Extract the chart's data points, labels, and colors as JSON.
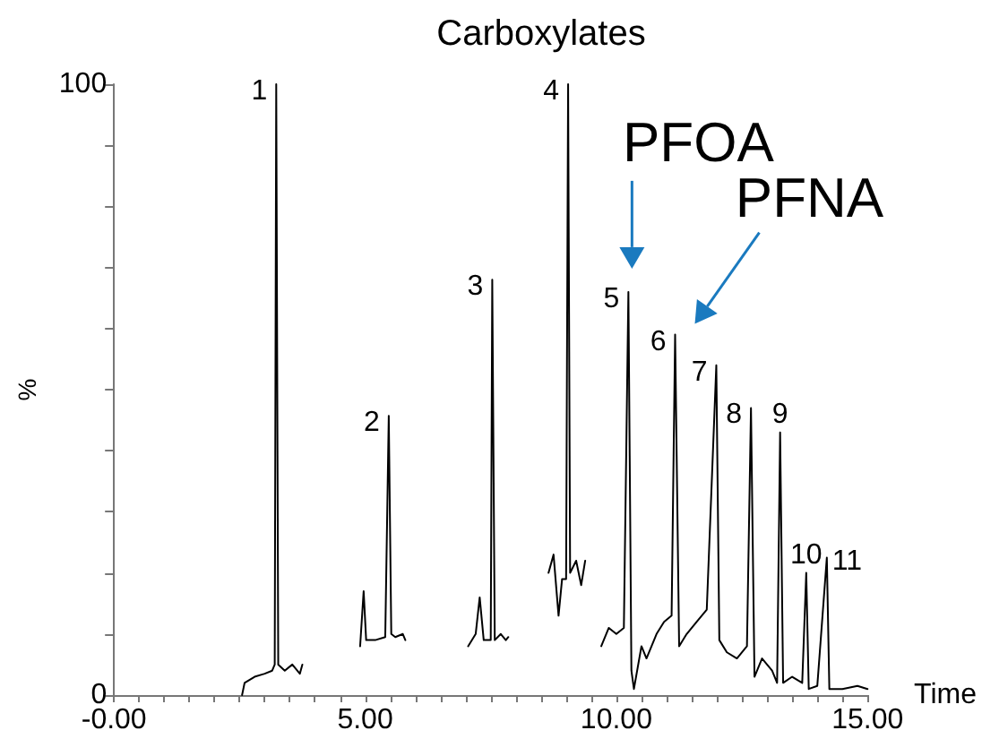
{
  "chart_data": {
    "type": "line",
    "title": "Carboxylates",
    "xlabel": "Time",
    "ylabel": "%",
    "x": [
      2.55,
      2.6,
      2.8,
      3.0,
      3.15,
      3.2,
      3.23,
      3.27,
      3.4,
      3.55,
      3.7,
      3.75,
      4.0,
      4.9,
      4.97,
      5.02,
      5.2,
      5.4,
      5.47,
      5.52,
      5.6,
      5.75,
      5.8,
      6.5,
      7.05,
      7.2,
      7.28,
      7.36,
      7.5,
      7.53,
      7.58,
      7.7,
      7.8,
      7.85,
      8.2,
      8.65,
      8.75,
      8.85,
      8.92,
      9.0,
      9.04,
      9.08,
      9.2,
      9.3,
      9.38,
      9.5,
      9.7,
      9.85,
      10.0,
      10.15,
      10.24,
      10.3,
      10.35,
      10.5,
      10.6,
      10.8,
      10.95,
      11.1,
      11.17,
      11.25,
      11.4,
      11.6,
      11.8,
      11.99,
      12.05,
      12.2,
      12.4,
      12.6,
      12.68,
      12.75,
      12.9,
      13.1,
      13.2,
      13.26,
      13.32,
      13.5,
      13.7,
      13.78,
      13.83,
      14.0,
      14.19,
      14.24,
      14.5,
      14.8,
      15.0
    ],
    "series": [
      {
        "color": "#000000",
        "values": [
          0,
          2,
          3,
          3.5,
          4,
          5,
          100,
          5,
          4,
          5,
          3.5,
          5,
          null,
          8,
          17,
          9,
          9,
          9.5,
          45.7,
          10,
          9.5,
          10,
          9,
          null,
          8,
          10,
          16,
          9,
          9,
          68,
          9,
          10,
          9,
          9.5,
          null,
          20,
          23,
          13,
          19,
          19,
          100,
          20,
          22,
          18,
          22,
          null,
          8,
          11,
          10,
          11,
          66,
          4,
          1,
          8,
          6,
          10,
          12,
          13,
          59,
          8,
          10,
          12,
          14,
          54,
          9,
          7,
          6,
          8,
          47,
          3,
          6,
          4,
          2,
          43,
          2,
          3,
          2,
          20,
          1,
          1.5,
          22.5,
          1,
          1,
          1.5,
          1
        ]
      }
    ],
    "xlim": [
      0,
      15
    ],
    "xticks": [
      {
        "value": 0,
        "label": "-0.00"
      },
      {
        "value": 0.5,
        "label": null
      },
      {
        "value": 1,
        "label": null
      },
      {
        "value": 1.5,
        "label": null
      },
      {
        "value": 2,
        "label": null
      },
      {
        "value": 2.5,
        "label": null
      },
      {
        "value": 3,
        "label": null
      },
      {
        "value": 3.5,
        "label": null
      },
      {
        "value": 4,
        "label": null
      },
      {
        "value": 4.5,
        "label": null
      },
      {
        "value": 5,
        "label": "5.00"
      },
      {
        "value": 5.5,
        "label": null
      },
      {
        "value": 6,
        "label": null
      },
      {
        "value": 6.5,
        "label": null
      },
      {
        "value": 7,
        "label": null
      },
      {
        "value": 7.5,
        "label": null
      },
      {
        "value": 8,
        "label": null
      },
      {
        "value": 8.5,
        "label": null
      },
      {
        "value": 9,
        "label": null
      },
      {
        "value": 9.5,
        "label": null
      },
      {
        "value": 10,
        "label": "10.00"
      },
      {
        "value": 10.5,
        "label": null
      },
      {
        "value": 11,
        "label": null
      },
      {
        "value": 11.5,
        "label": null
      },
      {
        "value": 12,
        "label": null
      },
      {
        "value": 12.5,
        "label": null
      },
      {
        "value": 13,
        "label": null
      },
      {
        "value": 13.5,
        "label": null
      },
      {
        "value": 14,
        "label": null
      },
      {
        "value": 14.5,
        "label": null
      },
      {
        "value": 15,
        "label": "15.00"
      }
    ],
    "ylim": [
      0,
      100
    ],
    "yticks": [
      0,
      {
        "value": 10,
        "label": null
      },
      {
        "value": 20,
        "label": null
      },
      {
        "value": 30,
        "label": null
      },
      {
        "value": 40,
        "label": null
      },
      {
        "value": 50,
        "label": null
      },
      {
        "value": 60,
        "label": null
      },
      {
        "value": 70,
        "label": null
      },
      {
        "value": 80,
        "label": null
      },
      {
        "value": 90,
        "label": null
      },
      100
    ],
    "grid": false,
    "marker": "none",
    "line_style": "solid",
    "annotations": [
      {
        "text": "1",
        "x": 3.23,
        "y": 100
      },
      {
        "text": "2",
        "x": 5.47,
        "y": 45.7
      },
      {
        "text": "3",
        "x": 7.53,
        "y": 68
      },
      {
        "text": "4",
        "x": 9.04,
        "y": 100
      },
      {
        "text": "5",
        "x": 10.24,
        "y": 66
      },
      {
        "text": "6",
        "x": 11.17,
        "y": 59
      },
      {
        "text": "7",
        "x": 11.99,
        "y": 54
      },
      {
        "text": "8",
        "x": 12.68,
        "y": 47
      },
      {
        "text": "9",
        "x": 13.26,
        "y": 43
      },
      {
        "text": "10",
        "x": 13.78,
        "y": 20
      },
      {
        "text": "11",
        "x": 14.19,
        "y": 22.5
      },
      {
        "text": "PFOA",
        "x": 10.24,
        "y": 66
      },
      {
        "text": "PFNA",
        "x": 11.17,
        "y": 59
      }
    ]
  }
}
